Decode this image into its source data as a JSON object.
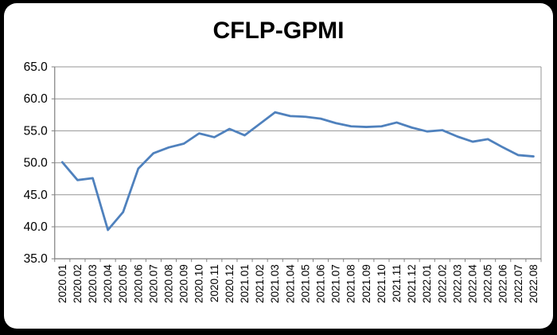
{
  "title": "CFLP-GPMI",
  "colors": {
    "frame": "#000000",
    "card": "#ffffff",
    "line": "#4F81BD",
    "gridline": "#969696",
    "axis": "#808080",
    "text": "#000000"
  },
  "chart_data": {
    "type": "line",
    "title": "CFLP-GPMI",
    "xlabel": "",
    "ylabel": "",
    "ylim": [
      35.0,
      65.0
    ],
    "ytick_step": 5.0,
    "y_tick_labels": [
      "65.0",
      "60.0",
      "55.0",
      "50.0",
      "45.0",
      "40.0",
      "35.0"
    ],
    "grid": "horizontal",
    "legend": "none",
    "x_label_rotation": -90,
    "categories": [
      "2020.01",
      "2020.02",
      "2020.03",
      "2020.04",
      "2020.05",
      "2020.06",
      "2020.07",
      "2020.08",
      "2020.09",
      "2020.10",
      "2020.11",
      "2020.12",
      "2021.01",
      "2021.02",
      "2021.03",
      "2021.04",
      "2021.05",
      "2021.06",
      "2021.07",
      "2021.08",
      "2021.09",
      "2021.10",
      "2021.11",
      "2021.12",
      "2022.01",
      "2022.02",
      "2022.03",
      "2022.04",
      "2022.05",
      "2022.06",
      "2022.07",
      "2022.08"
    ],
    "series": [
      {
        "name": "CFLP-GPMI",
        "values": [
          50.1,
          47.3,
          47.6,
          39.5,
          42.3,
          49.1,
          51.5,
          52.4,
          53.0,
          54.6,
          54.0,
          55.3,
          54.3,
          56.1,
          57.9,
          57.3,
          57.2,
          56.9,
          56.2,
          55.7,
          55.6,
          55.7,
          56.3,
          55.5,
          54.9,
          55.1,
          54.1,
          53.3,
          53.7,
          52.4,
          51.2,
          51.0
        ]
      }
    ]
  }
}
